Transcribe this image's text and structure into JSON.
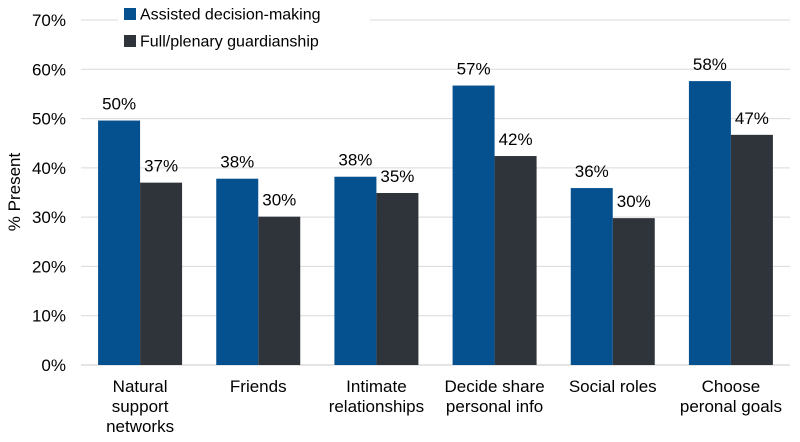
{
  "chart_data": {
    "type": "bar",
    "categories": [
      [
        "Natural",
        "support",
        "networks"
      ],
      [
        "Friends"
      ],
      [
        "Intimate",
        "relationships"
      ],
      [
        "Decide share",
        "personal info"
      ],
      [
        "Social roles"
      ],
      [
        "Choose",
        "peronal goals"
      ]
    ],
    "series": [
      {
        "name": "Assisted decision-making",
        "color": "#05508f",
        "values": [
          49.6,
          37.8,
          38.2,
          56.7,
          35.9,
          57.6
        ],
        "labels": [
          "50%",
          "38%",
          "38%",
          "57%",
          "36%",
          "58%"
        ]
      },
      {
        "name": "Full/plenary guardianship",
        "color": "#2f343b",
        "values": [
          37.0,
          30.1,
          34.9,
          42.4,
          29.8,
          46.7
        ],
        "labels": [
          "37%",
          "30%",
          "35%",
          "42%",
          "30%",
          "47%"
        ]
      }
    ],
    "ylabel": "% Present",
    "ylim": [
      0,
      70
    ],
    "yticks": [
      0,
      10,
      20,
      30,
      40,
      50,
      60,
      70
    ],
    "ytick_labels": [
      "0%",
      "10%",
      "20%",
      "30%",
      "40%",
      "50%",
      "60%",
      "70%"
    ],
    "grid": true,
    "legend_position": "top-left"
  }
}
